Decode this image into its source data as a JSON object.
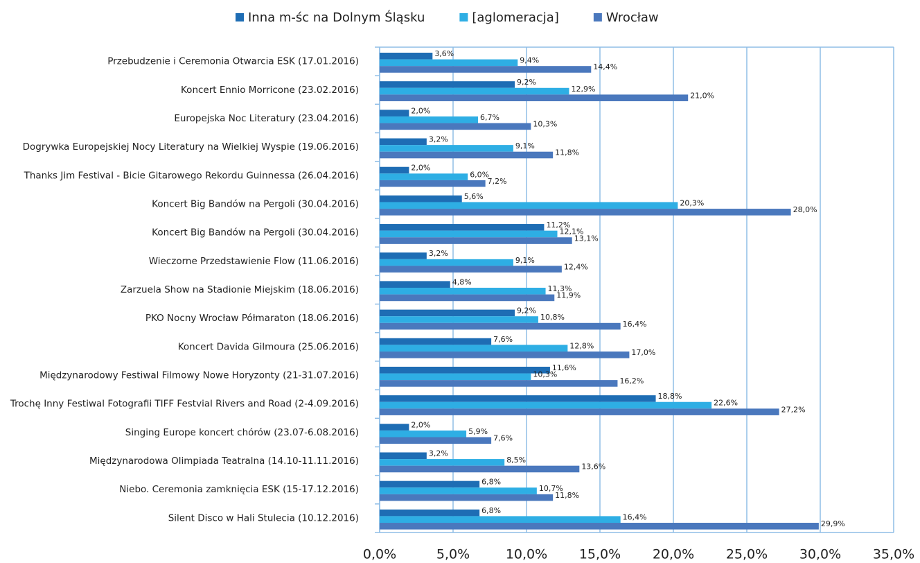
{
  "chart_data": {
    "type": "hbar",
    "categories": [
      "Przebudzenie i Ceremonia Otwarcia ESK (17.01.2016)",
      "Koncert Ennio Morricone (23.02.2016)",
      "Europejska Noc Literatury (23.04.2016)",
      "Dogrywka Europejskiej Nocy Literatury na Wielkiej Wyspie (19.06.2016)",
      "Thanks Jim Festival - Bicie Gitarowego Rekordu Guinnessa (26.04.2016)",
      "Koncert Big Bandów na Pergoli (30.04.2016)",
      "Koncert Big Bandów na Pergoli (30.04.2016)",
      "Wieczorne Przedstawienie Flow (11.06.2016)",
      "Zarzuela Show na Stadionie Miejskim (18.06.2016)",
      "PKO Nocny Wrocław Półmaraton (18.06.2016)",
      "Koncert Davida Gilmoura (25.06.2016)",
      "Międzynarodowy Festiwal Filmowy Nowe Horyzonty (21-31.07.2016)",
      "Trochę Inny Festiwal Fotografii TIFF Festvial Rivers and Road (2-4.09.2016)",
      "Singing Europe koncert chórów (23.07-6.08.2016)",
      "Międzynarodowa Olimpiada Teatralna (14.10-11.11.2016)",
      "Niebo. Ceremonia zamknięcia ESK (15-17.12.2016)",
      "Silent Disco w Hali Stulecia (10.12.2016)"
    ],
    "series": [
      {
        "name": "Inna m-śc na Dolnym Śląsku",
        "color": "#1e6db4",
        "values": [
          3.6,
          9.2,
          2.0,
          3.2,
          2.0,
          5.6,
          11.2,
          3.2,
          4.8,
          9.2,
          7.6,
          11.6,
          18.8,
          2.0,
          3.2,
          6.8,
          6.8
        ],
        "value_labels": [
          "3,6%",
          "9,2%",
          "2,0%",
          "3,2%",
          "2,0%",
          "5,6%",
          "11,2%",
          "3,2%",
          "4,8%",
          "9,2%",
          "7,6%",
          "11,6%",
          "18,8%",
          "2,0%",
          "3,2%",
          "6,8%",
          "6,8%"
        ]
      },
      {
        "name": "[aglomeracja]",
        "color": "#2eaee4",
        "values": [
          9.4,
          12.9,
          6.7,
          9.1,
          6.0,
          20.3,
          12.1,
          9.1,
          11.3,
          10.8,
          12.8,
          10.3,
          22.6,
          5.9,
          8.5,
          10.7,
          16.4
        ],
        "value_labels": [
          "9,4%",
          "12,9%",
          "6,7%",
          "9,1%",
          "6,0%",
          "20,3%",
          "12,1%",
          "9,1%",
          "11,3%",
          "10,8%",
          "12,8%",
          "10,3%",
          "22,6%",
          "5,9%",
          "8,5%",
          "10,7%",
          "16,4%"
        ]
      },
      {
        "name": "Wrocław",
        "color": "#4a78bd",
        "values": [
          14.4,
          21.0,
          10.3,
          11.8,
          7.2,
          28.0,
          13.1,
          12.4,
          11.9,
          16.4,
          17.0,
          16.2,
          27.2,
          7.6,
          13.6,
          11.8,
          29.9
        ],
        "value_labels": [
          "14,4%",
          "21,0%",
          "10,3%",
          "11,8%",
          "7,2%",
          "28,0%",
          "13,1%",
          "12,4%",
          "11,9%",
          "16,4%",
          "17,0%",
          "16,2%",
          "27,2%",
          "7,6%",
          "13,6%",
          "11,8%",
          "29,9%"
        ]
      }
    ],
    "xlim": [
      0,
      35
    ],
    "xticks": [
      {
        "value": 0,
        "label": "0,0%"
      },
      {
        "value": 5,
        "label": "5,0%"
      },
      {
        "value": 10,
        "label": "10,0%"
      },
      {
        "value": 15,
        "label": "15,0%"
      },
      {
        "value": 20,
        "label": "20,0%"
      },
      {
        "value": 25,
        "label": "25,0%"
      },
      {
        "value": 30,
        "label": "30,0%"
      },
      {
        "value": 35,
        "label": "35,0%"
      }
    ],
    "grid": true,
    "legend": "top"
  }
}
